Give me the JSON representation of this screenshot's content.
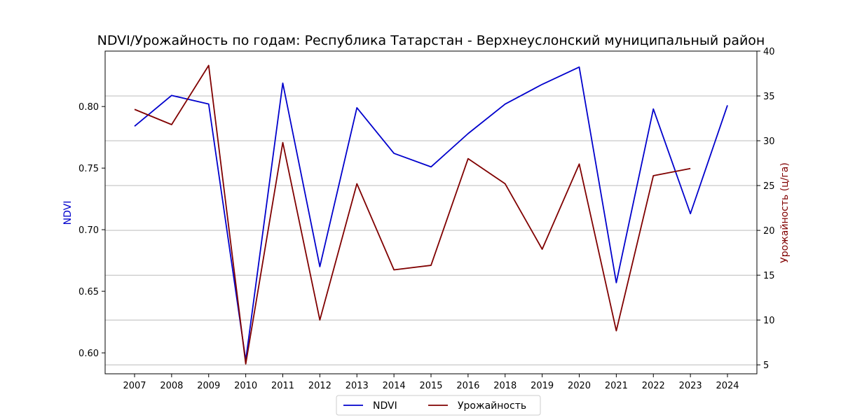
{
  "chart_data": {
    "type": "line",
    "title": "NDVI/Урожайность по годам: Республика Татарстан - Верхнеуслонский муниципальный район",
    "categories": [
      "2007",
      "2008",
      "2009",
      "2010",
      "2011",
      "2012",
      "2013",
      "2014",
      "2015",
      "2016",
      "2018",
      "2019",
      "2020",
      "2021",
      "2022",
      "2023",
      "2024"
    ],
    "ylabel_left": "NDVI",
    "ylabel_right": "Урожайность (ц/га)",
    "ylim_left": [
      0.583,
      0.845
    ],
    "ylim_right": [
      4,
      40
    ],
    "yticks_left": [
      0.6,
      0.65,
      0.7,
      0.75,
      0.8
    ],
    "yticks_left_labels": [
      "0.60",
      "0.65",
      "0.70",
      "0.75",
      "0.80"
    ],
    "yticks_right": [
      5,
      10,
      15,
      20,
      25,
      30,
      35,
      40
    ],
    "yticks_right_labels": [
      "5",
      "10",
      "15",
      "20",
      "25",
      "30",
      "35",
      "40"
    ],
    "grid": "horizontal (right axis ticks)",
    "legend_position": "bottom-center",
    "series": [
      {
        "name": "NDVI",
        "axis": "left",
        "color": "#0000cc",
        "values": [
          0.784,
          0.809,
          0.802,
          0.594,
          0.819,
          0.67,
          0.799,
          0.762,
          0.751,
          0.778,
          0.802,
          0.818,
          0.832,
          0.657,
          0.798,
          0.713,
          0.801
        ]
      },
      {
        "name": "Урожайность",
        "axis": "right",
        "color": "#800000",
        "values": [
          33.5,
          31.8,
          38.4,
          5.1,
          29.8,
          10.0,
          25.2,
          15.6,
          16.1,
          28.0,
          25.2,
          17.9,
          27.4,
          8.8,
          26.1,
          26.9,
          null
        ]
      }
    ]
  }
}
